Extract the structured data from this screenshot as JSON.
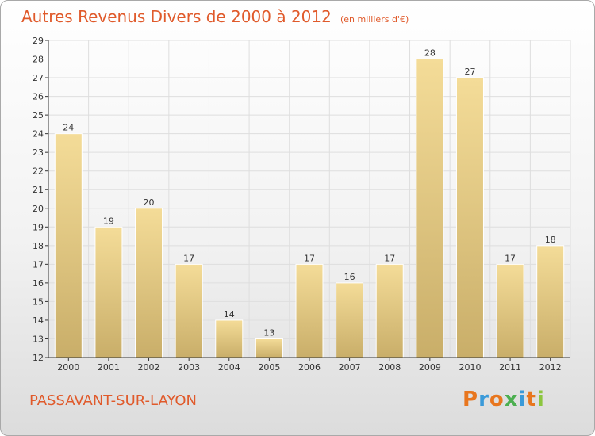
{
  "title": {
    "main": "Autres Revenus Divers de 2000 à 2012",
    "unit": "(en milliers d'€)"
  },
  "footer": {
    "commune": "PASSAVANT-SUR-LAYON",
    "brand": "Proxiti",
    "brand_colors": [
      "#e8761e",
      "#3a9ad9",
      "#e8761e",
      "#4caf50",
      "#3a9ad9",
      "#e8761e",
      "#8cc63f"
    ]
  },
  "colors": {
    "title": "#e05a2b",
    "bar_light": "#f4dc98",
    "bar_dark": "#c9ae69",
    "grid": "#dedede",
    "axis": "#333333"
  },
  "chart_data": {
    "type": "bar",
    "categories": [
      "2000",
      "2001",
      "2002",
      "2003",
      "2004",
      "2005",
      "2006",
      "2007",
      "2008",
      "2009",
      "2010",
      "2011",
      "2012"
    ],
    "values": [
      24,
      19,
      20,
      17,
      14,
      13,
      17,
      16,
      17,
      28,
      27,
      17,
      18
    ],
    "ylim": [
      12,
      29
    ],
    "yticks": [
      12,
      13,
      14,
      15,
      16,
      17,
      18,
      19,
      20,
      21,
      22,
      23,
      24,
      25,
      26,
      27,
      28,
      29
    ],
    "grid": true,
    "data_labels": true
  }
}
